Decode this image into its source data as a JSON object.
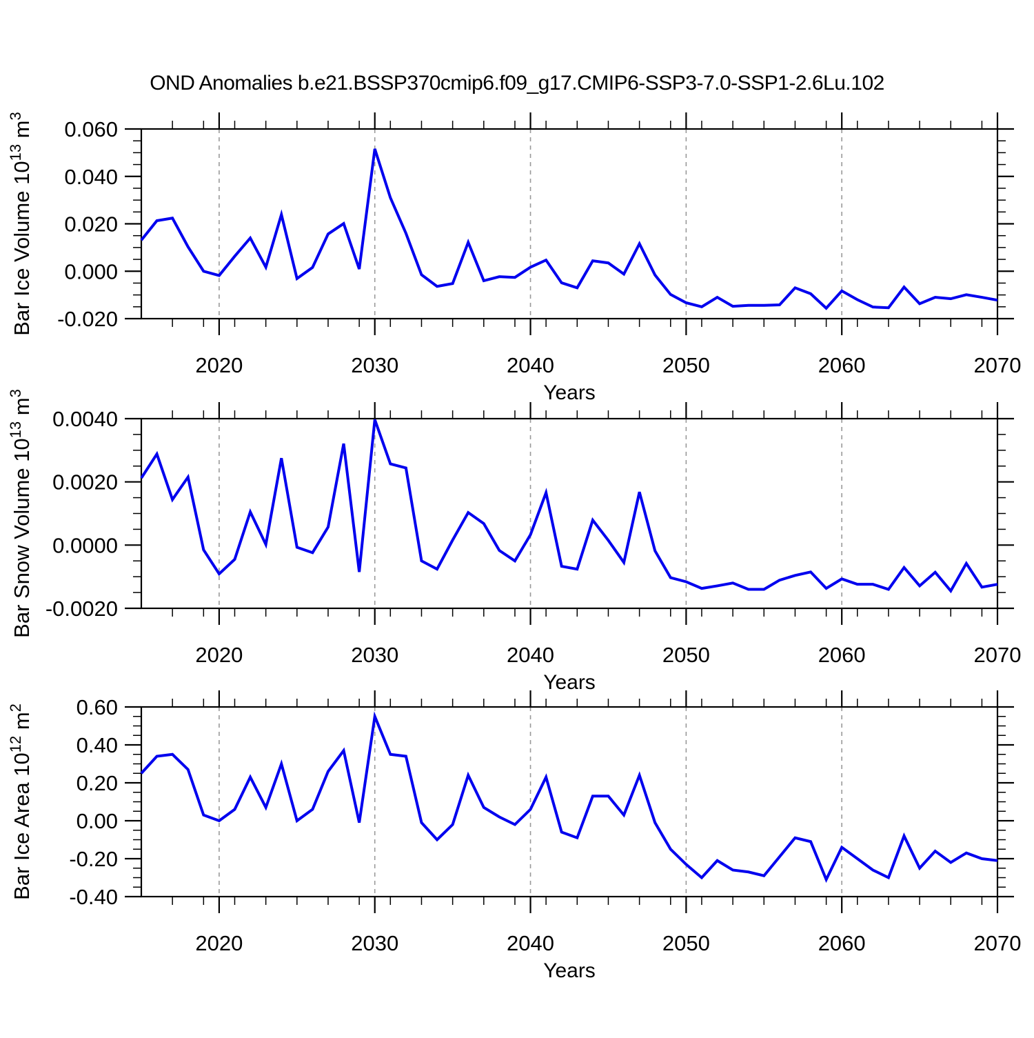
{
  "title": "OND Anomalies b.e21.BSSP370cmip6.f09_g17.CMIP6-SSP3-7.0-SSP1-2.6Lu.102",
  "styles": {
    "line_color": "#0000ee",
    "grid_color": "#999999",
    "axis_color": "#000000"
  },
  "x_axis": {
    "label": "Years",
    "range": [
      2015,
      2070
    ],
    "minor_step": 2,
    "major_ticks": [
      {
        "v": 2020,
        "label": "2020"
      },
      {
        "v": 2030,
        "label": "2030"
      },
      {
        "v": 2040,
        "label": "2040"
      },
      {
        "v": 2050,
        "label": "2050"
      },
      {
        "v": 2060,
        "label": "2060"
      },
      {
        "v": 2070,
        "label": "2070"
      }
    ],
    "gridlines": [
      2020,
      2030,
      2040,
      2050,
      2060,
      2070
    ]
  },
  "years": [
    2015,
    2016,
    2017,
    2018,
    2019,
    2020,
    2021,
    2022,
    2023,
    2024,
    2025,
    2026,
    2027,
    2028,
    2029,
    2030,
    2031,
    2032,
    2033,
    2034,
    2035,
    2036,
    2037,
    2038,
    2039,
    2040,
    2041,
    2042,
    2043,
    2044,
    2045,
    2046,
    2047,
    2048,
    2049,
    2050,
    2051,
    2052,
    2053,
    2054,
    2055,
    2056,
    2057,
    2058,
    2059,
    2060,
    2061,
    2062,
    2063,
    2064,
    2065,
    2066,
    2067,
    2068,
    2069,
    2070
  ],
  "chart_data": [
    {
      "type": "line",
      "name": "ice-volume",
      "ylabel_parts": [
        {
          "t": "Bar Ice Volume 10"
        },
        {
          "t": "13",
          "sup": true
        },
        {
          "t": " m"
        },
        {
          "t": "3",
          "sup": true
        }
      ],
      "ylim": [
        -0.02,
        0.06
      ],
      "y_minor_step": 0.005,
      "yticks": [
        {
          "v": -0.02,
          "label": "-0.020"
        },
        {
          "v": 0.0,
          "label": "0.000"
        },
        {
          "v": 0.02,
          "label": "0.020"
        },
        {
          "v": 0.04,
          "label": "0.040"
        },
        {
          "v": 0.06,
          "label": "0.060"
        }
      ],
      "values": [
        0.0131,
        0.0213,
        0.0224,
        0.0103,
        0.0,
        -0.0018,
        0.0063,
        0.014,
        0.0017,
        0.0239,
        -0.0031,
        0.0016,
        0.0157,
        0.0201,
        0.0009,
        0.0516,
        0.031,
        0.016,
        -0.0015,
        -0.0064,
        -0.0052,
        0.0122,
        -0.004,
        -0.0023,
        -0.0026,
        0.0017,
        0.0047,
        -0.0049,
        -0.007,
        0.0044,
        0.0035,
        -0.0012,
        0.0116,
        -0.0016,
        -0.0098,
        -0.0133,
        -0.015,
        -0.011,
        -0.0148,
        -0.0144,
        -0.0144,
        -0.0142,
        -0.007,
        -0.0095,
        -0.0156,
        -0.0083,
        -0.012,
        -0.0151,
        -0.0154,
        -0.0067,
        -0.0137,
        -0.011,
        -0.0116,
        -0.0099,
        -0.011,
        -0.0122
      ]
    },
    {
      "type": "line",
      "name": "snow-volume",
      "ylabel_parts": [
        {
          "t": "Bar Snow Volume 10"
        },
        {
          "t": "13",
          "sup": true
        },
        {
          "t": " m"
        },
        {
          "t": "3",
          "sup": true
        }
      ],
      "ylim": [
        -0.002,
        0.004
      ],
      "y_minor_step": 0.0005,
      "yticks": [
        {
          "v": -0.002,
          "label": "-0.0020"
        },
        {
          "v": 0.0,
          "label": "0.0000"
        },
        {
          "v": 0.002,
          "label": "0.0020"
        },
        {
          "v": 0.004,
          "label": "0.0040"
        }
      ],
      "values": [
        0.00212,
        0.00288,
        0.00144,
        0.00215,
        -0.00015,
        -0.00091,
        -0.00045,
        0.00105,
        2e-05,
        0.00275,
        -7e-05,
        -0.00024,
        0.00057,
        0.00321,
        -0.00085,
        0.00397,
        0.00257,
        0.00244,
        -0.0005,
        -0.00076,
        0.00016,
        0.00103,
        0.00068,
        -0.00017,
        -0.0005,
        0.00033,
        0.00166,
        -0.00067,
        -0.00076,
        0.00079,
        0.00015,
        -0.00055,
        0.00168,
        -0.00018,
        -0.00103,
        -0.00116,
        -0.00137,
        -0.00129,
        -0.0012,
        -0.0014,
        -0.0014,
        -0.00111,
        -0.00096,
        -0.00085,
        -0.00137,
        -0.00107,
        -0.00124,
        -0.00124,
        -0.0014,
        -0.00071,
        -0.00129,
        -0.00086,
        -0.00145,
        -0.00058,
        -0.00133,
        -0.00124
      ]
    },
    {
      "type": "line",
      "name": "ice-area",
      "ylabel_parts": [
        {
          "t": "Bar Ice Area 10"
        },
        {
          "t": "12",
          "sup": true
        },
        {
          "t": " m"
        },
        {
          "t": "2",
          "sup": true
        }
      ],
      "ylim": [
        -0.4,
        0.6
      ],
      "y_minor_step": 0.05,
      "yticks": [
        {
          "v": -0.4,
          "label": "-0.40"
        },
        {
          "v": -0.2,
          "label": "-0.20"
        },
        {
          "v": 0.0,
          "label": "0.00"
        },
        {
          "v": 0.2,
          "label": "0.20"
        },
        {
          "v": 0.4,
          "label": "0.40"
        },
        {
          "v": 0.6,
          "label": "0.60"
        }
      ],
      "values": [
        0.25,
        0.34,
        0.35,
        0.27,
        0.03,
        0.0,
        0.06,
        0.23,
        0.07,
        0.3,
        0.0,
        0.06,
        0.26,
        0.37,
        -0.01,
        0.55,
        0.35,
        0.34,
        -0.01,
        -0.1,
        -0.02,
        0.24,
        0.07,
        0.02,
        -0.02,
        0.06,
        0.23,
        -0.06,
        -0.09,
        0.13,
        0.13,
        0.03,
        0.24,
        -0.01,
        -0.15,
        -0.23,
        -0.3,
        -0.21,
        -0.26,
        -0.27,
        -0.29,
        -0.19,
        -0.09,
        -0.11,
        -0.31,
        -0.14,
        -0.2,
        -0.26,
        -0.3,
        -0.08,
        -0.25,
        -0.16,
        -0.22,
        -0.17,
        -0.2,
        -0.21
      ]
    }
  ]
}
